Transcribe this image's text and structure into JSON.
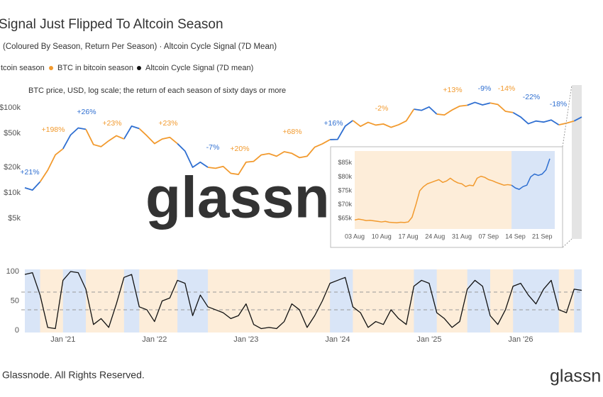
{
  "chart_data": [
    {
      "type": "line",
      "title": "Signal Just Flipped To Altcoin Season",
      "subtitle": "(Coloured By Season, Return Per Season) · Altcoin Cycle Signal (7D Mean)",
      "note": "BTC price, USD, log scale; the return of each season of sixty days or more",
      "watermark": "glassn",
      "categories": [
        null,
        null,
        null,
        null,
        null,
        "Jan '21",
        null,
        null,
        null,
        null,
        null,
        null,
        null,
        null,
        null,
        null,
        null,
        "Jan '22",
        null,
        null,
        null,
        null,
        null,
        null,
        null,
        null,
        null,
        null,
        null,
        "Jan '23",
        null,
        null,
        null,
        null,
        null,
        null,
        null,
        null,
        null,
        null,
        null,
        "Jan '24",
        null,
        null,
        null,
        null,
        null,
        null,
        null,
        null,
        null,
        null,
        null,
        "Jan '25",
        null,
        null,
        null,
        null,
        null,
        null,
        null,
        null,
        null,
        null,
        null,
        "Jan '26",
        null,
        null,
        null,
        null,
        null,
        null,
        null,
        null
      ],
      "log_scale": true,
      "ylim": [
        3300,
        185000
      ],
      "yticks": [
        {
          "value": 5000,
          "label": "$5k"
        },
        {
          "value": 10000,
          "label": "$10k"
        },
        {
          "value": 20000,
          "label": "$20k"
        },
        {
          "value": 50000,
          "label": "$50k"
        },
        {
          "value": 100000,
          "label": "$100k"
        }
      ],
      "y2lim": [
        0,
        100
      ],
      "y2ticks": [
        0,
        50,
        100
      ],
      "y2_reference_lines": [
        65,
        35
      ],
      "series": [
        {
          "name": "tcoin season",
          "color": "#2f6fd1",
          "values": [
            11500,
            10800,
            13500,
            null,
            null,
            33000,
            48000,
            58000,
            56000,
            null,
            null,
            null,
            null,
            43000,
            61000,
            57000,
            null,
            null,
            null,
            null,
            38000,
            31000,
            20000,
            23000,
            20000,
            null,
            null,
            null,
            null,
            null,
            null,
            null,
            null,
            null,
            null,
            null,
            null,
            null,
            null,
            null,
            42300,
            42600,
            61000,
            71000,
            null,
            null,
            null,
            null,
            null,
            null,
            null,
            96400,
            93400,
            102400,
            84400,
            null,
            null,
            null,
            107100,
            115800,
            108200,
            114000,
            null,
            null,
            88000,
            78000,
            65000,
            70000,
            68000,
            72000,
            63000,
            null,
            70000,
            78000
          ]
        },
        {
          "name": "BTC in bitcoin season",
          "color": "#f29a2e",
          "values": [
            null,
            null,
            13500,
            18500,
            28000,
            33000,
            null,
            null,
            56000,
            37000,
            35000,
            41000,
            47000,
            43000,
            null,
            57000,
            47000,
            38000,
            43000,
            45000,
            38000,
            null,
            null,
            null,
            20000,
            19500,
            20500,
            17000,
            16500,
            23000,
            23500,
            28000,
            29000,
            27000,
            30500,
            29200,
            26000,
            27000,
            34500,
            37700,
            42300,
            null,
            null,
            71000,
            60600,
            67500,
            62700,
            64600,
            59000,
            63300,
            70200,
            96400,
            null,
            null,
            84400,
            82500,
            94200,
            104600,
            107100,
            null,
            null,
            114000,
            109500,
            91000,
            88000,
            null,
            null,
            null,
            null,
            null,
            63000,
            66000,
            70000,
            null
          ]
        },
        {
          "name": "Altcoin Cycle Signal (7D mean)",
          "color": "#111111",
          "axis": "y2",
          "values": [
            95,
            98,
            60,
            5,
            3,
            85,
            100,
            98,
            70,
            10,
            20,
            5,
            45,
            90,
            95,
            40,
            35,
            15,
            50,
            55,
            85,
            80,
            25,
            60,
            40,
            35,
            30,
            20,
            25,
            45,
            10,
            3,
            5,
            3,
            15,
            45,
            35,
            5,
            25,
            50,
            80,
            85,
            90,
            40,
            30,
            5,
            15,
            10,
            35,
            20,
            10,
            75,
            85,
            80,
            30,
            20,
            5,
            15,
            70,
            85,
            75,
            25,
            10,
            35,
            75,
            80,
            60,
            45,
            70,
            85,
            35,
            30,
            70,
            68
          ]
        }
      ],
      "annotations": [
        {
          "text": "+21%",
          "color": "#2f6fd1"
        },
        {
          "text": "+198%",
          "color": "#f29a2e"
        },
        {
          "text": "+26%",
          "color": "#2f6fd1"
        },
        {
          "text": "+23%",
          "color": "#f29a2e"
        },
        {
          "text": "+23%",
          "color": "#f29a2e"
        },
        {
          "text": "-7%",
          "color": "#2f6fd1"
        },
        {
          "text": "+20%",
          "color": "#f29a2e"
        },
        {
          "text": "+68%",
          "color": "#f29a2e"
        },
        {
          "text": "+16%",
          "color": "#2f6fd1"
        },
        {
          "text": "-2%",
          "color": "#f29a2e"
        },
        {
          "text": "+13%",
          "color": "#f29a2e"
        },
        {
          "text": "-9%",
          "color": "#2f6fd1"
        },
        {
          "text": "-14%",
          "color": "#f29a2e"
        },
        {
          "text": "-22%",
          "color": "#2f6fd1"
        },
        {
          "text": "-18%",
          "color": "#2f6fd1"
        }
      ]
    },
    {
      "type": "line",
      "categories": [
        "03 Aug",
        null,
        null,
        null,
        null,
        null,
        null,
        "10 Aug",
        null,
        null,
        null,
        null,
        null,
        null,
        "17 Aug",
        null,
        null,
        null,
        null,
        null,
        null,
        "24 Aug",
        null,
        null,
        null,
        null,
        null,
        null,
        "31 Aug",
        null,
        null,
        null,
        null,
        null,
        null,
        "07 Sep",
        null,
        null,
        null,
        null,
        null,
        null,
        "14 Sep",
        null,
        null,
        null,
        null,
        null,
        null,
        "21 Sep",
        null,
        null
      ],
      "ylim": [
        60000,
        88000
      ],
      "yticks": [
        {
          "value": 65000,
          "label": "$65k"
        },
        {
          "value": 70000,
          "label": "$70k"
        },
        {
          "value": 75000,
          "label": "$75k"
        },
        {
          "value": 80000,
          "label": "$80k"
        },
        {
          "value": 85000,
          "label": "$85k"
        }
      ],
      "series": [
        {
          "color": "#f29a2e",
          "values": [
            64500,
            64800,
            64600,
            64300,
            64400,
            64200,
            64000,
            63800,
            64000,
            63700,
            63600,
            63500,
            63700,
            63600,
            63800,
            65500,
            70000,
            75000,
            76500,
            77500,
            78000,
            78500,
            79000,
            78000,
            78500,
            79500,
            78500,
            77800,
            77500,
            76500,
            77000,
            76800,
            79500,
            80200,
            79800,
            79000,
            78600,
            78000,
            77500,
            77000,
            77200,
            77000,
            null,
            null,
            null,
            null,
            null,
            null,
            null,
            null,
            null,
            null
          ]
        },
        {
          "color": "#2f6fd1",
          "values": [
            null,
            null,
            null,
            null,
            null,
            null,
            null,
            null,
            null,
            null,
            null,
            null,
            null,
            null,
            null,
            null,
            null,
            null,
            null,
            null,
            null,
            null,
            null,
            null,
            null,
            null,
            null,
            null,
            null,
            null,
            null,
            null,
            null,
            null,
            null,
            null,
            null,
            null,
            null,
            null,
            null,
            77000,
            76000,
            75500,
            76500,
            77000,
            80000,
            81000,
            80500,
            81000,
            82500,
            86500
          ]
        }
      ]
    }
  ],
  "footer": {
    "copyright": "Glassnode. All Rights Reserved.",
    "logo": "glassn"
  }
}
